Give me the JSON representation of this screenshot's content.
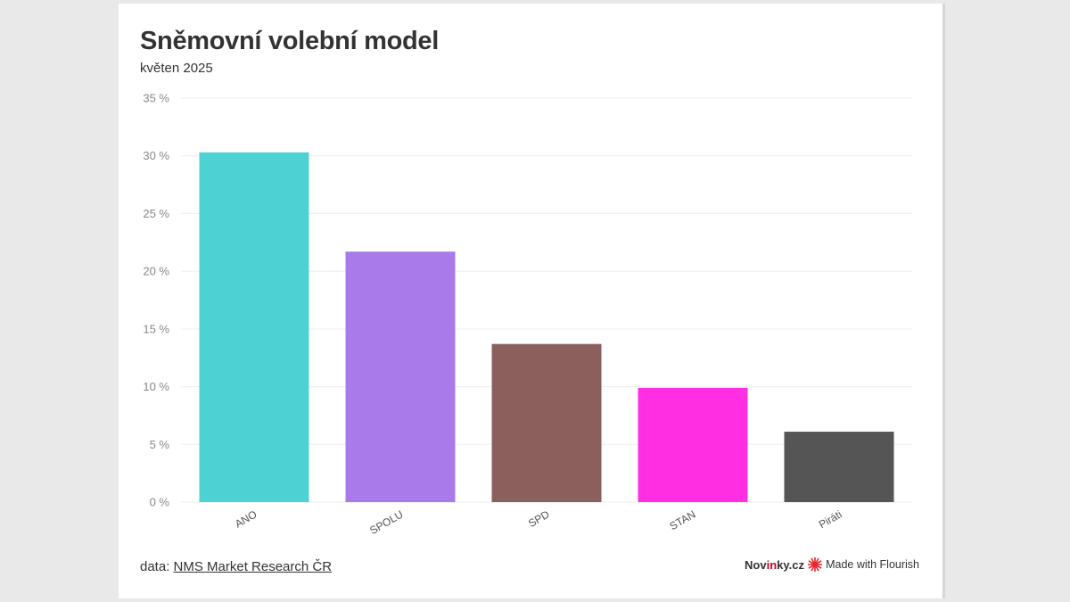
{
  "header": {
    "title": "Sněmovní volební model",
    "subtitle": "květen 2025"
  },
  "footer": {
    "source_prefix": "data: ",
    "source_link": "NMS Market Research ČR",
    "brand_prefix": "Nov",
    "brand_highlight": "in",
    "brand_suffix": "ky.cz",
    "flourish_label": "Made with Flourish"
  },
  "colors": {
    "flourish_logo": "#e8262d",
    "gridline": "#eeeeee",
    "axis_text": "#888888"
  },
  "chart_data": {
    "type": "bar",
    "title": "Sněmovní volební model",
    "subtitle": "květen 2025",
    "xlabel": "",
    "ylabel": "",
    "categories": [
      "ANO",
      "SPOLU",
      "SPD",
      "STAN",
      "Piráti"
    ],
    "values": [
      30.3,
      21.7,
      13.7,
      9.9,
      6.1
    ],
    "colors": [
      "#4dd1d2",
      "#a87aea",
      "#8b5f5c",
      "#ff2ee2",
      "#555555"
    ],
    "ylim": [
      0,
      35
    ],
    "yticks": [
      0,
      5,
      10,
      15,
      20,
      25,
      30,
      35
    ],
    "ytick_suffix": " %",
    "grid": true,
    "legend": "none"
  }
}
